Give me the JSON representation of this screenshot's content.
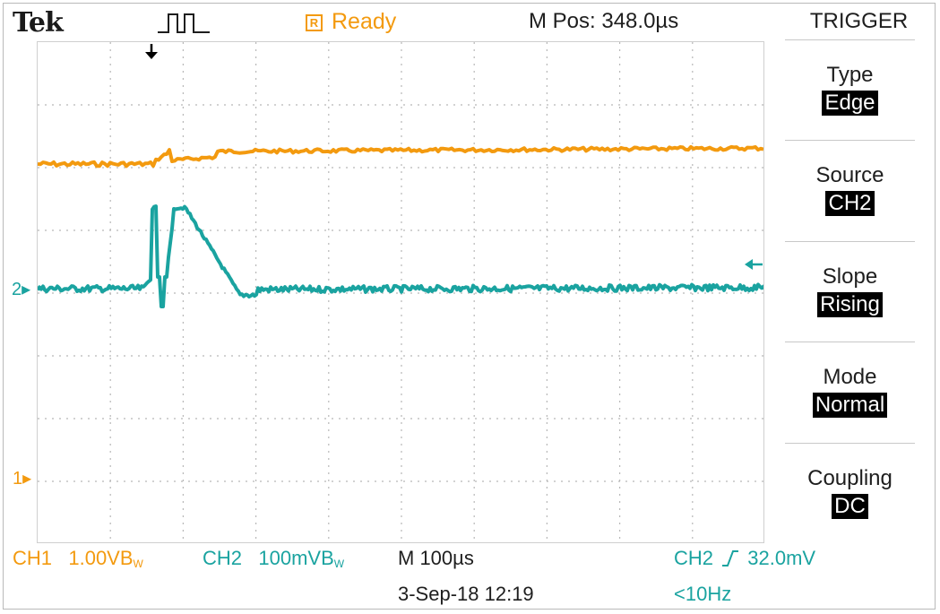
{
  "header": {
    "brand": "Tek",
    "status_badge": "R",
    "status": "Ready",
    "m_pos": "M Pos: 348.0µs",
    "trigger_icon": "pulse-icon"
  },
  "markers": {
    "ch2": "2",
    "ch1": "1",
    "trigger_position_icon": "down-arrow-icon",
    "trigger_level_icon": "left-arrow-icon"
  },
  "menu": {
    "title": "TRIGGER",
    "items": [
      {
        "label": "Type",
        "value": "Edge"
      },
      {
        "label": "Source",
        "value": "CH2"
      },
      {
        "label": "Slope",
        "value": "Rising"
      },
      {
        "label": "Mode",
        "value": "Normal"
      },
      {
        "label": "Coupling",
        "value": "DC"
      }
    ]
  },
  "bottom": {
    "ch1_name": "CH1",
    "ch1_scale": "1.00V",
    "ch1_bw": "B",
    "ch1_bw_sub": "W",
    "ch2_name": "CH2",
    "ch2_scale": "100mV",
    "ch2_bw": "B",
    "ch2_bw_sub": "W",
    "timebase": "M 100µs",
    "trigger_src": "CH2",
    "trigger_level": "32.0mV",
    "date": "3-Sep-18 12:19",
    "freq": "<10Hz"
  },
  "colors": {
    "ch1": "#f39a0f",
    "ch2": "#1aa3a0",
    "grid": "#b8b8b8"
  }
}
